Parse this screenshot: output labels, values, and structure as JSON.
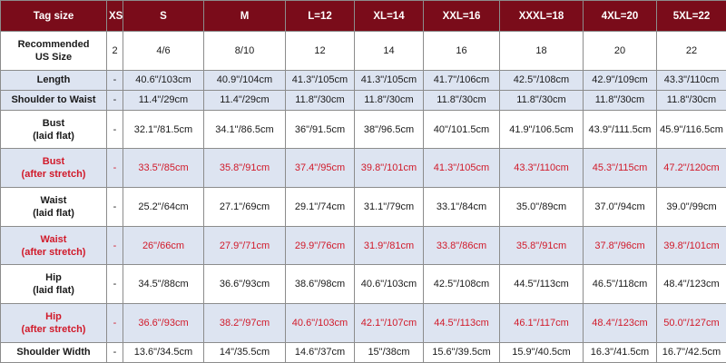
{
  "header": [
    "Tag size",
    "XS",
    "S",
    "M",
    "L=12",
    "XL=14",
    "XXL=16",
    "XXXL=18",
    "4XL=20",
    "5XL=22"
  ],
  "rows": [
    {
      "label": [
        "Recommended",
        "US Size"
      ],
      "style": "white",
      "cells": [
        "2",
        "4/6",
        "8/10",
        "12",
        "14",
        "16",
        "18",
        "20",
        "22"
      ]
    },
    {
      "label": [
        "Length"
      ],
      "style": "blue",
      "cells": [
        "-",
        "40.6\"/103cm",
        "40.9\"/104cm",
        "41.3\"/105cm",
        "41.3\"/105cm",
        "41.7\"/106cm",
        "42.5\"/108cm",
        "42.9\"/109cm",
        "43.3\"/110cm"
      ]
    },
    {
      "label": [
        "Shoulder to Waist"
      ],
      "style": "blue",
      "cells": [
        "-",
        "11.4\"/29cm",
        "11.4\"/29cm",
        "11.8\"/30cm",
        "11.8\"/30cm",
        "11.8\"/30cm",
        "11.8\"/30cm",
        "11.8\"/30cm",
        "11.8\"/30cm"
      ]
    },
    {
      "label": [
        "Bust",
        "(laid flat)"
      ],
      "style": "white",
      "cells": [
        "-",
        "32.1\"/81.5cm",
        "34.1\"/86.5cm",
        "36\"/91.5cm",
        "38\"/96.5cm",
        "40\"/101.5cm",
        "41.9\"/106.5cm",
        "43.9\"/111.5cm",
        "45.9\"/116.5cm"
      ]
    },
    {
      "label": [
        "Bust",
        "(after stretch)"
      ],
      "style": "blue red",
      "cells": [
        "-",
        "33.5\"/85cm",
        "35.8\"/91cm",
        "37.4\"/95cm",
        "39.8\"/101cm",
        "41.3\"/105cm",
        "43.3\"/110cm",
        "45.3\"/115cm",
        "47.2\"/120cm"
      ]
    },
    {
      "label": [
        "Waist",
        "(laid flat)"
      ],
      "style": "white",
      "cells": [
        "-",
        "25.2\"/64cm",
        "27.1\"/69cm",
        "29.1\"/74cm",
        "31.1\"/79cm",
        "33.1\"/84cm",
        "35.0\"/89cm",
        "37.0\"/94cm",
        "39.0\"/99cm"
      ]
    },
    {
      "label": [
        "Waist",
        "(after stretch)"
      ],
      "style": "blue red",
      "cells": [
        "-",
        "26\"/66cm",
        "27.9\"/71cm",
        "29.9\"/76cm",
        "31.9\"/81cm",
        "33.8\"/86cm",
        "35.8\"/91cm",
        "37.8\"/96cm",
        "39.8\"/101cm"
      ]
    },
    {
      "label": [
        "Hip",
        "(laid flat)"
      ],
      "style": "white",
      "cells": [
        "-",
        "34.5\"/88cm",
        "36.6\"/93cm",
        "38.6\"/98cm",
        "40.6\"/103cm",
        "42.5\"/108cm",
        "44.5\"/113cm",
        "46.5\"/118cm",
        "48.4\"/123cm"
      ]
    },
    {
      "label": [
        "Hip",
        "(after stretch)"
      ],
      "style": "blue red",
      "cells": [
        "-",
        "36.6\"/93cm",
        "38.2\"/97cm",
        "40.6\"/103cm",
        "42.1\"/107cm",
        "44.5\"/113cm",
        "46.1\"/117cm",
        "48.4\"/123cm",
        "50.0\"/127cm"
      ]
    },
    {
      "label": [
        "Shoulder Width"
      ],
      "style": "white",
      "cells": [
        "-",
        "13.6\"/34.5cm",
        "14\"/35.5cm",
        "14.6\"/37cm",
        "15\"/38cm",
        "15.6\"/39.5cm",
        "15.9\"/40.5cm",
        "16.3\"/41.5cm",
        "16.7\"/42.5cm"
      ]
    }
  ],
  "colors": {
    "header_bg": "#7a0c1a",
    "header_text": "#ffffff",
    "stripe_bg": "#dde4f1",
    "stretch_text": "#d11a2a",
    "border": "#8c8c8c"
  }
}
